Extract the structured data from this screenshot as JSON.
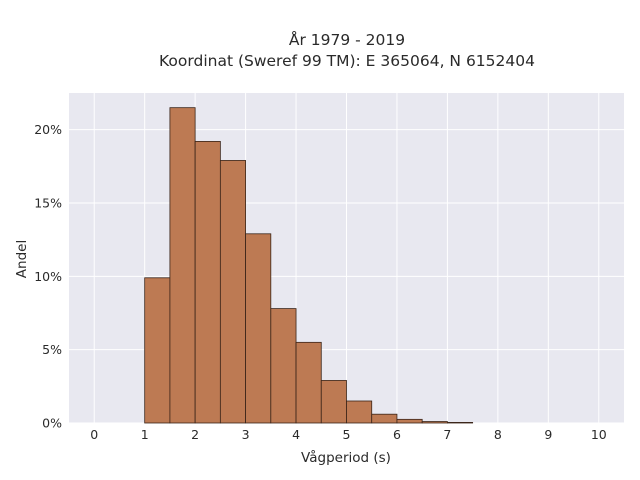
{
  "chart_data": {
    "type": "bar",
    "title_line1": "År 1979 - 2019",
    "title_line2": "Koordinat (Sweref 99 TM): E 365064, N 6152404",
    "xlabel": "Vågperiod (s)",
    "ylabel": "Andel",
    "xlim": [
      -0.5,
      10.5
    ],
    "ylim": [
      0,
      0.225
    ],
    "x_ticks": [
      0,
      1,
      2,
      3,
      4,
      5,
      6,
      7,
      8,
      9,
      10
    ],
    "x_tick_labels": [
      "0",
      "1",
      "2",
      "3",
      "4",
      "5",
      "6",
      "7",
      "8",
      "9",
      "10"
    ],
    "y_ticks": [
      0,
      0.05,
      0.1,
      0.15,
      0.2
    ],
    "y_tick_labels": [
      "0%",
      "5%",
      "10%",
      "15%",
      "20%"
    ],
    "grid": true,
    "bin_width": 0.5,
    "bins": [
      {
        "start": 1.0,
        "value": 0.099
      },
      {
        "start": 1.5,
        "value": 0.215
      },
      {
        "start": 2.0,
        "value": 0.192
      },
      {
        "start": 2.5,
        "value": 0.179
      },
      {
        "start": 3.0,
        "value": 0.129
      },
      {
        "start": 3.5,
        "value": 0.078
      },
      {
        "start": 4.0,
        "value": 0.055
      },
      {
        "start": 4.5,
        "value": 0.029
      },
      {
        "start": 5.0,
        "value": 0.015
      },
      {
        "start": 5.5,
        "value": 0.006
      },
      {
        "start": 6.0,
        "value": 0.0025
      },
      {
        "start": 6.5,
        "value": 0.001
      },
      {
        "start": 7.0,
        "value": 0.0004
      }
    ],
    "colors": {
      "bar_fill": "#bd7a53",
      "bar_edge": "#3a2418",
      "plot_background": "#e8e8f0",
      "grid": "#ffffff"
    }
  }
}
